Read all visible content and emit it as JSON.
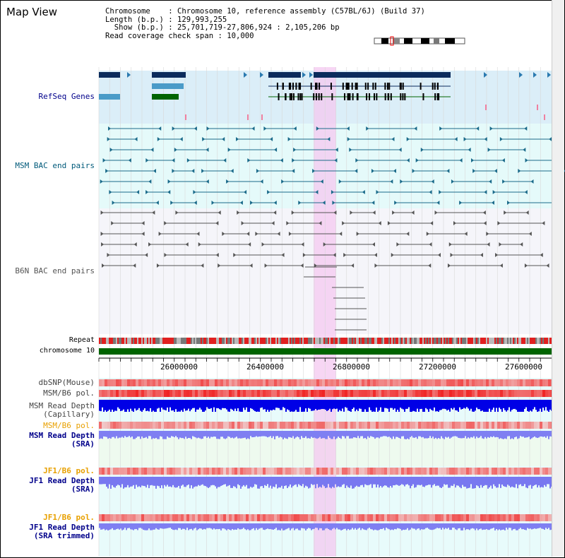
{
  "title": "Map View",
  "info": {
    "line1": "Chromosome    : Chromosome 10, reference assembly (C57BL/6J) (Build 37)",
    "line2": "Length (b.p.) : 129,993,255",
    "line3": "  Show (b.p.) : 25,701,719-27,806,924 : 2,105,206 bp",
    "line4": "Read coverage check span : 10,000"
  },
  "labels": {
    "refseq": "RefSeq Genes",
    "msm_bac": "MSM BAC end pairs",
    "b6n_bac": "B6N BAC end pairs",
    "repeat": "Repeat",
    "chromosome": "chromosome 10",
    "dbsnp": "dbSNP(Mouse)",
    "msm_b6_pol": "MSM/B6 pol.",
    "msm_read_depth_cap": "MSM Read Depth\n(Capillary)",
    "msm_b6_pol_2": "MSM/B6 pol.",
    "msm_read_depth_sra": "MSM Read Depth\n(SRA)",
    "jf1_b6_pol": "JF1/B6 pol.",
    "jf1_read_depth_sra": "JF1 Read Depth\n(SRA)",
    "jf1_b6_pol_2": "JF1/B6 pol.",
    "jf1_read_depth_trim": "JF1 Read Depth\n(SRA trimmed)"
  },
  "axis": {
    "ticks": [
      "26000000",
      "26400000",
      "26800000",
      "27200000",
      "27600000"
    ]
  },
  "colors": {
    "refseq_bg": "#dbeef8",
    "msm_bg": "#e5fafa",
    "b6n_bg": "#f5f5fa",
    "highlight": "#f6d6f3",
    "chromosome": "#006400",
    "depth_blue": "#0000e6",
    "depth_light": "#7f7ff2",
    "label_navy": "#00008b",
    "label_teal": "#005a7a",
    "label_orange": "#e8a000"
  }
}
